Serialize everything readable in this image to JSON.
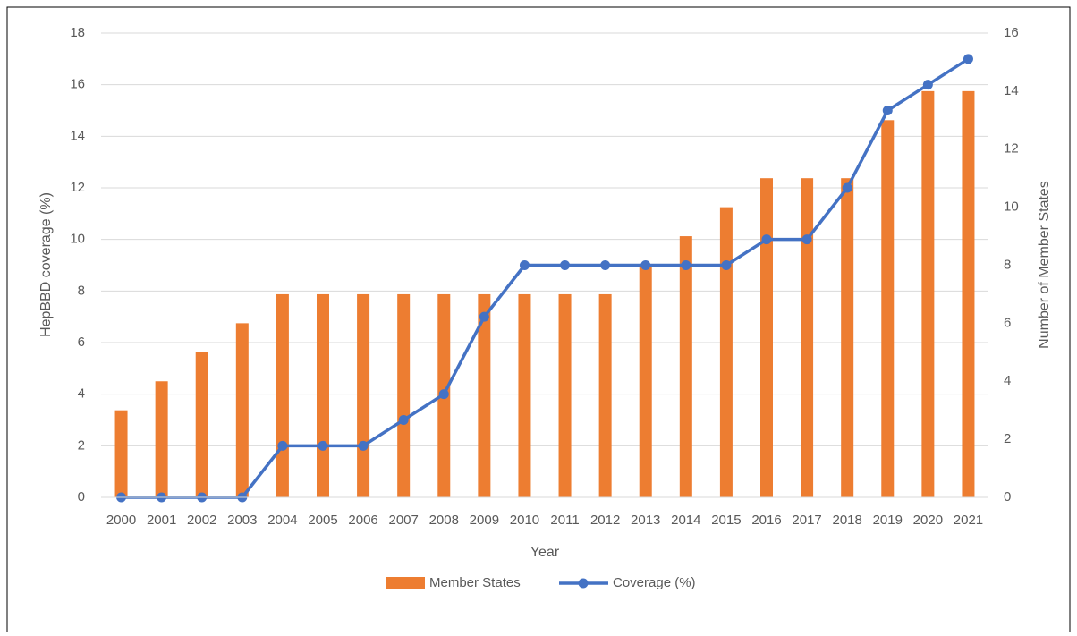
{
  "chart_data": {
    "type": "bar-line",
    "x_label": "Year",
    "y_label": "HepBBD coverage (%)",
    "y2_label": "Number of Member States",
    "categories": [
      "2000",
      "2001",
      "2002",
      "2003",
      "2004",
      "2005",
      "2006",
      "2007",
      "2008",
      "2009",
      "2010",
      "2011",
      "2012",
      "2013",
      "2014",
      "2015",
      "2016",
      "2017",
      "2018",
      "2019",
      "2020",
      "2021"
    ],
    "series": [
      {
        "name": "Member States",
        "type": "bar",
        "axis": "y2",
        "color": "#ed7d31",
        "values": [
          3,
          4,
          5,
          6,
          7,
          7,
          7,
          7,
          7,
          7,
          7,
          7,
          7,
          8,
          9,
          10,
          11,
          11,
          11,
          13,
          14,
          14
        ]
      },
      {
        "name": "Coverage (%)",
        "type": "line",
        "axis": "y",
        "color": "#4472c4",
        "values": [
          0,
          0,
          0,
          0,
          2,
          2,
          2,
          3,
          4,
          7,
          9,
          9,
          9,
          9,
          9,
          9,
          10,
          10,
          12,
          15,
          16,
          17
        ]
      }
    ],
    "ylim": [
      0,
      18
    ],
    "yticks": [
      0,
      2,
      4,
      6,
      8,
      10,
      12,
      14,
      16,
      18
    ],
    "y2lim": [
      0,
      16
    ],
    "y2ticks": [
      0,
      2,
      4,
      6,
      8,
      10,
      12,
      14,
      16
    ],
    "grid": true,
    "legend": "bottom"
  }
}
